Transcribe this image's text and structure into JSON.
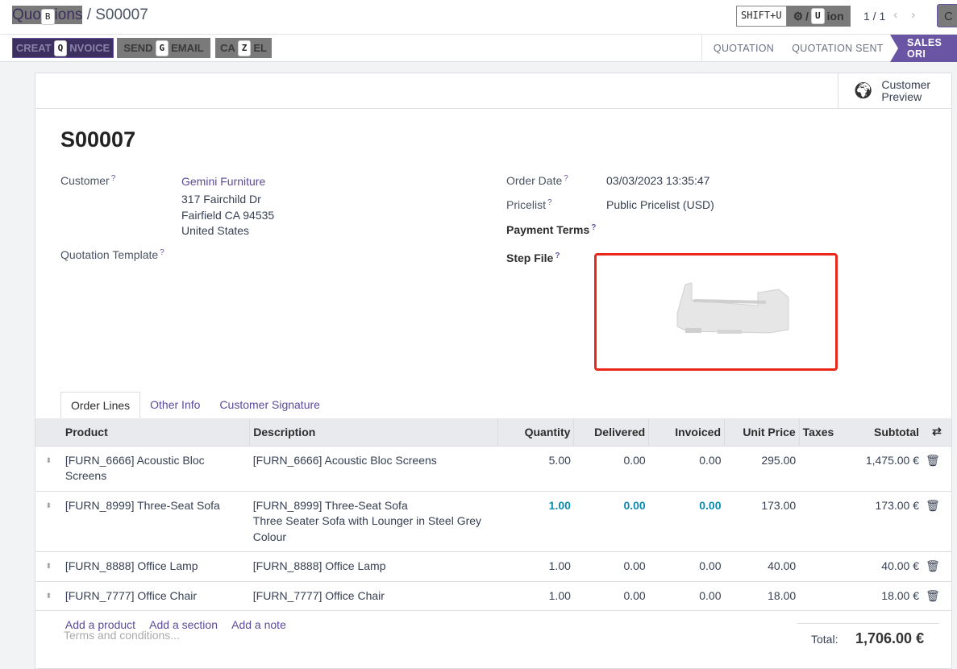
{
  "breadcrumb": {
    "parent": "Quotations",
    "parent_shown_a": "Quo",
    "parent_shown_b": "ions",
    "parent_key": "B",
    "current": "S00007"
  },
  "header_right": {
    "shift_key": "SHIFT+U",
    "action_key": "U",
    "action_a": "/",
    "action_b": "ion",
    "pager": "1 / 1",
    "create_label": "C"
  },
  "actions": [
    {
      "a": "CREAT",
      "key": "Q",
      "b": "NVOICE"
    },
    {
      "a": "SEND",
      "key": "G",
      "b": "EMAIL"
    },
    {
      "a": "CA",
      "key": "Z",
      "b": "EL"
    }
  ],
  "statusbar": {
    "steps": [
      "QUOTATION",
      "QUOTATION SENT",
      "SALES ORDER"
    ],
    "active": "SALES ORDER",
    "active_shown": "SALES ORI"
  },
  "customer_preview": "Customer Preview",
  "record": {
    "name": "S00007",
    "customer_label": "Customer",
    "customer": "Gemini Furniture",
    "address": [
      "317 Fairchild Dr",
      "Fairfield CA 94535",
      "United States"
    ],
    "template_label": "Quotation Template",
    "order_date_label": "Order Date",
    "order_date": "03/03/2023 13:35:47",
    "pricelist_label": "Pricelist",
    "pricelist": "Public Pricelist (USD)",
    "payment_terms_label": "Payment Terms",
    "step_file_label": "Step File",
    "help": "?"
  },
  "tabs": [
    "Order Lines",
    "Other Info",
    "Customer Signature"
  ],
  "table": {
    "headers": [
      "Product",
      "Description",
      "Quantity",
      "Delivered",
      "Invoiced",
      "Unit Price",
      "Taxes",
      "Subtotal"
    ],
    "rows": [
      {
        "product": "[FURN_6666] Acoustic Bloc Screens",
        "desc": [
          "[FURN_6666] Acoustic Bloc Screens"
        ],
        "qty": "5.00",
        "delivered": "0.00",
        "invoiced": "0.00",
        "price": "295.00",
        "taxes": "",
        "subtotal": "1,475.00 €"
      },
      {
        "product": "[FURN_8999] Three-Seat Sofa",
        "desc": [
          "[FURN_8999] Three-Seat Sofa",
          "Three Seater Sofa with Lounger in Steel Grey",
          "Colour"
        ],
        "qty": "1.00",
        "delivered": "0.00",
        "invoiced": "0.00",
        "price": "173.00",
        "taxes": "",
        "subtotal": "173.00 €"
      },
      {
        "product": "[FURN_8888] Office Lamp",
        "desc": [
          "[FURN_8888] Office Lamp"
        ],
        "qty": "1.00",
        "delivered": "0.00",
        "invoiced": "0.00",
        "price": "40.00",
        "taxes": "",
        "subtotal": "40.00 €"
      },
      {
        "product": "[FURN_7777] Office Chair",
        "desc": [
          "[FURN_7777] Office Chair"
        ],
        "qty": "1.00",
        "delivered": "0.00",
        "invoiced": "0.00",
        "price": "18.00",
        "taxes": "",
        "subtotal": "18.00 €"
      }
    ],
    "add_links": [
      "Add a product",
      "Add a section",
      "Add a note"
    ]
  },
  "terms_placeholder": "Terms and conditions...",
  "total": {
    "label": "Total:",
    "value": "1,706.00 €"
  }
}
